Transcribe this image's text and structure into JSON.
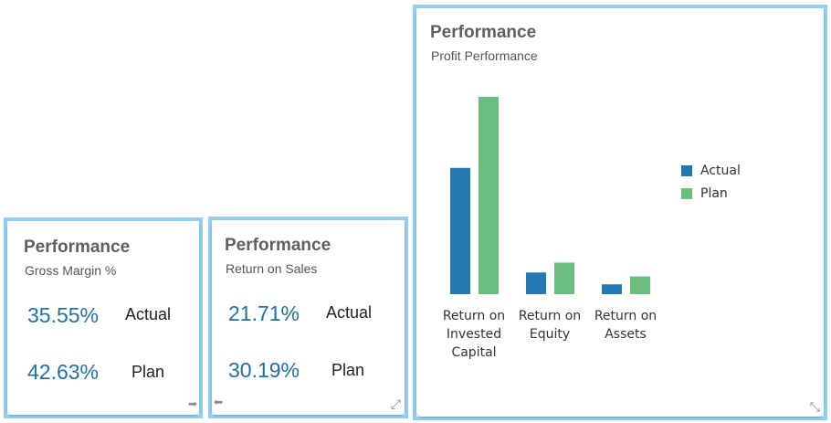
{
  "cards": [
    {
      "title": "Performance",
      "subtitle": "Gross Margin %",
      "actual_value": "35.55%",
      "actual_label": "Actual",
      "plan_value": "42.63%",
      "plan_label": "Plan",
      "icons": [
        "arrow-right-icon"
      ]
    },
    {
      "title": "Performance",
      "subtitle": "Return on Sales",
      "actual_value": "21.71%",
      "actual_label": "Actual",
      "plan_value": "30.19%",
      "plan_label": "Plan",
      "icons": [
        "arrow-left-icon",
        "expand-icon"
      ]
    }
  ],
  "chart_card": {
    "title": "Performance",
    "subtitle": "Profit Performance",
    "icons": [
      "collapse-icon"
    ]
  },
  "chart_data": {
    "type": "bar",
    "title": "",
    "categories": [
      "Return on Invested Capital",
      "Return on Equity",
      "Return on Assets"
    ],
    "category_lines": [
      [
        "Return on",
        "Invested",
        "Capital"
      ],
      [
        "Return on",
        "Equity"
      ],
      [
        "Return on",
        "Assets"
      ]
    ],
    "series": [
      {
        "name": "Actual",
        "color": "#2579b1",
        "values": [
          64,
          11,
          5
        ]
      },
      {
        "name": "Plan",
        "color": "#6abf80",
        "values": [
          100,
          16,
          9
        ]
      }
    ],
    "value_axis_shown": false,
    "grid": false,
    "legend": "right"
  }
}
